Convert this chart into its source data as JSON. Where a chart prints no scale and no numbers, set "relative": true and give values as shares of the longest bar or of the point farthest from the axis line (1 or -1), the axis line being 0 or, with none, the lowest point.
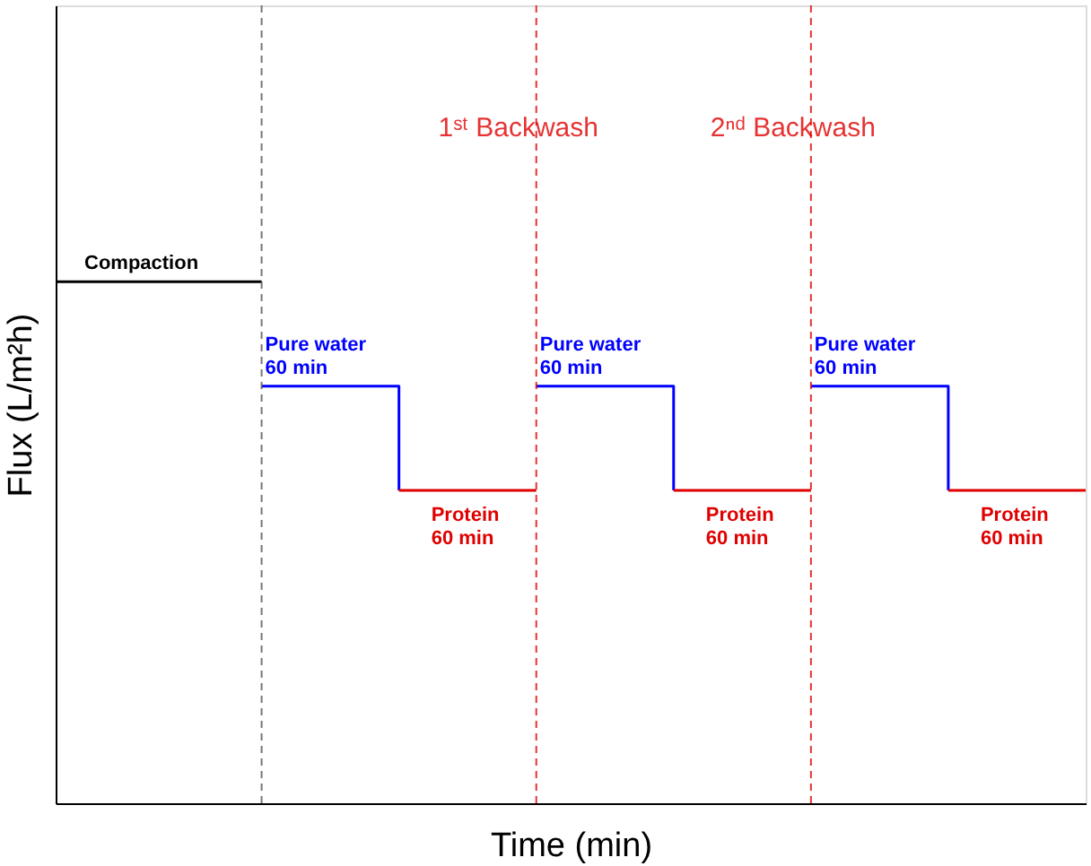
{
  "chart_data": {
    "type": "step",
    "relative": true,
    "xlabel": "Time (min)",
    "ylabel": "Flux (L/m²h)",
    "tick_labels": false,
    "grid": false,
    "marker": "none",
    "line_style": "solid",
    "categories": [
      null,
      null,
      null,
      null,
      null,
      null,
      null,
      null,
      null,
      null,
      null,
      null,
      null,
      null,
      null,
      null
    ],
    "series": [
      {
        "color": "#000000",
        "values": [
          1,
          1,
          1,
          1,
          null,
          null,
          null,
          null,
          null,
          null,
          null,
          null,
          null,
          null,
          null,
          null
        ]
      },
      {
        "color": "#0000ff",
        "values": [
          null,
          null,
          null,
          0.8,
          0.8,
          0.6,
          null,
          0.8,
          0.8,
          0.6,
          null,
          0.8,
          0.8,
          0.6,
          null,
          null
        ]
      },
      {
        "color": "#e00000",
        "values": [
          null,
          null,
          null,
          null,
          null,
          0.6,
          0.6,
          0.6,
          null,
          0.6,
          0.6,
          0.6,
          null,
          0.6,
          0.6,
          0.6
        ]
      }
    ],
    "annotations": [
      "Compaction",
      "Pure water\n60 min",
      "Protein\n60 min",
      "Pure water\n60 min",
      "Protein\n60 min",
      "Pure water\n60 min",
      "Protein\n60 min",
      "1ˢᵗ Backwash",
      "2ⁿᵈ Backwash"
    ]
  }
}
